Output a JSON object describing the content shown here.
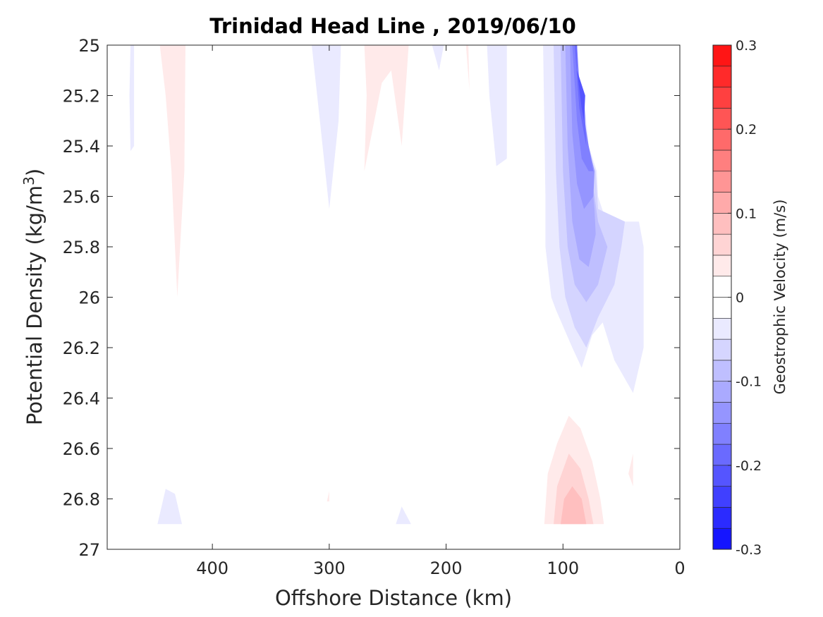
{
  "chart_data": {
    "type": "contour",
    "title": "Trinidad Head Line , 2019/06/10",
    "xlabel": "Offshore Distance (km)",
    "ylabel": "Potential Density (kg/m",
    "ylabel_superscript": "3",
    "ylabel_close": ")",
    "x_reversed": true,
    "y_reversed": true,
    "xlim": [
      0,
      490
    ],
    "ylim": [
      25,
      27
    ],
    "xticks": [
      400,
      300,
      200,
      100,
      0
    ],
    "xtick_labels": [
      "400",
      "300",
      "200",
      "100",
      "0"
    ],
    "yticks": [
      25,
      25.2,
      25.4,
      25.6,
      25.8,
      26,
      26.2,
      26.4,
      26.6,
      26.8,
      27
    ],
    "ytick_labels": [
      "25",
      "25.2",
      "25.4",
      "25.6",
      "25.8",
      "26",
      "26.2",
      "26.4",
      "26.6",
      "26.8",
      "27"
    ],
    "colorbar": {
      "label": "Geostrophic Velocity (m/s)",
      "min": -0.3,
      "max": 0.3,
      "step": 0.025,
      "ticks": [
        -0.3,
        -0.2,
        -0.1,
        0,
        0.1,
        0.2,
        0.3
      ],
      "tick_labels": [
        "-0.3",
        "-0.2",
        "-0.1",
        "0",
        "0.1",
        "0.2",
        "0.3"
      ],
      "negative_color": "#0000ff",
      "positive_color": "#ff0000"
    },
    "contour_regions": [
      {
        "level": -0.025,
        "points": [
          [
            470,
            25
          ],
          [
            467,
            25
          ],
          [
            467,
            25.4
          ],
          [
            470,
            25.42
          ],
          [
            471,
            25.2
          ]
        ]
      },
      {
        "level": 0.025,
        "points": [
          [
            445,
            25
          ],
          [
            423,
            25
          ],
          [
            424,
            25.5
          ],
          [
            430,
            26
          ],
          [
            435,
            25.5
          ],
          [
            440,
            25.2
          ]
        ]
      },
      {
        "level": -0.025,
        "points": [
          [
            315,
            25
          ],
          [
            290,
            25
          ],
          [
            292,
            25.3
          ],
          [
            300,
            25.65
          ],
          [
            308,
            25.3
          ]
        ]
      },
      {
        "level": 0.025,
        "points": [
          [
            270,
            25
          ],
          [
            232,
            25
          ],
          [
            235,
            25.2
          ],
          [
            238,
            25.4
          ],
          [
            247,
            25.1
          ],
          [
            255,
            25.15
          ],
          [
            270,
            25.5
          ],
          [
            268,
            25.2
          ]
        ]
      },
      {
        "level": -0.025,
        "points": [
          [
            212,
            25
          ],
          [
            202,
            25
          ],
          [
            206,
            25.1
          ]
        ]
      },
      {
        "level": 0.025,
        "points": [
          [
            183,
            25
          ],
          [
            181,
            25
          ],
          [
            180,
            25.18
          ]
        ]
      },
      {
        "level": -0.025,
        "points": [
          [
            165,
            25
          ],
          [
            148,
            25
          ],
          [
            148,
            25.45
          ],
          [
            157,
            25.48
          ],
          [
            163,
            25.2
          ]
        ]
      },
      {
        "level": -0.025,
        "points": [
          [
            117,
            25
          ],
          [
            115,
            25.6
          ],
          [
            115,
            25.8
          ],
          [
            110,
            26.0
          ],
          [
            106,
            26.05
          ],
          [
            92,
            26.2
          ],
          [
            84,
            26.28
          ],
          [
            75,
            26.15
          ],
          [
            66,
            26.1
          ],
          [
            56,
            26.25
          ],
          [
            40,
            26.38
          ],
          [
            31,
            26.2
          ],
          [
            31,
            25.8
          ],
          [
            35,
            25.7
          ],
          [
            63,
            25.7
          ],
          [
            70,
            25.6
          ],
          [
            71,
            25.5
          ],
          [
            78,
            25.4
          ],
          [
            82,
            25.2
          ],
          [
            88,
            25.1
          ],
          [
            88,
            25
          ]
        ]
      },
      {
        "level": -0.05,
        "points": [
          [
            108,
            25
          ],
          [
            106,
            25.5
          ],
          [
            103,
            25.8
          ],
          [
            98,
            26
          ],
          [
            90,
            26.12
          ],
          [
            80,
            26.2
          ],
          [
            70,
            26.08
          ],
          [
            56,
            25.95
          ],
          [
            50,
            25.8
          ],
          [
            47,
            25.7
          ],
          [
            70,
            25.65
          ],
          [
            72,
            25.5
          ],
          [
            80,
            25.4
          ],
          [
            85,
            25.2
          ],
          [
            88,
            25.1
          ],
          [
            88,
            25
          ]
        ]
      },
      {
        "level": -0.075,
        "points": [
          [
            102,
            25
          ],
          [
            100,
            25.5
          ],
          [
            96,
            25.8
          ],
          [
            90,
            25.95
          ],
          [
            80,
            26.02
          ],
          [
            70,
            25.95
          ],
          [
            62,
            25.8
          ],
          [
            70,
            25.7
          ],
          [
            73,
            25.6
          ],
          [
            80,
            25.4
          ],
          [
            85,
            25.2
          ],
          [
            88,
            25.1
          ],
          [
            88,
            25
          ]
        ]
      },
      {
        "level": -0.1,
        "points": [
          [
            98,
            25
          ],
          [
            96,
            25.4
          ],
          [
            92,
            25.7
          ],
          [
            86,
            25.85
          ],
          [
            78,
            25.88
          ],
          [
            72,
            25.75
          ],
          [
            73,
            25.65
          ],
          [
            76,
            25.5
          ],
          [
            82,
            25.35
          ],
          [
            86,
            25.2
          ],
          [
            88,
            25.1
          ],
          [
            88,
            25
          ]
        ]
      },
      {
        "level": -0.125,
        "points": [
          [
            94,
            25
          ],
          [
            92,
            25.35
          ],
          [
            88,
            25.55
          ],
          [
            82,
            25.65
          ],
          [
            74,
            25.6
          ],
          [
            73,
            25.5
          ],
          [
            78,
            25.4
          ],
          [
            83,
            25.25
          ],
          [
            87,
            25.15
          ],
          [
            88,
            25
          ]
        ]
      },
      {
        "level": -0.15,
        "points": [
          [
            92,
            25
          ],
          [
            88,
            25.3
          ],
          [
            84,
            25.45
          ],
          [
            78,
            25.5
          ],
          [
            74,
            25.5
          ],
          [
            78,
            25.4
          ],
          [
            82,
            25.3
          ],
          [
            86,
            25.15
          ],
          [
            88,
            25
          ]
        ]
      },
      {
        "level": -0.175,
        "points": [
          [
            90,
            25
          ],
          [
            86,
            25.25
          ],
          [
            82,
            25.35
          ],
          [
            80,
            25.4
          ],
          [
            82,
            25.2
          ],
          [
            88,
            25.1
          ],
          [
            88,
            25
          ]
        ]
      },
      {
        "level": -0.2,
        "points": [
          [
            88,
            25.1
          ],
          [
            84,
            25.25
          ],
          [
            82,
            25.3
          ],
          [
            81,
            25.2
          ]
        ]
      },
      {
        "level": 0.025,
        "points": [
          [
            116,
            26.9
          ],
          [
            113,
            26.7
          ],
          [
            105,
            26.58
          ],
          [
            95,
            26.47
          ],
          [
            85,
            26.52
          ],
          [
            75,
            26.65
          ],
          [
            68,
            26.8
          ],
          [
            65,
            26.9
          ]
        ]
      },
      {
        "level": 0.05,
        "points": [
          [
            108,
            26.9
          ],
          [
            105,
            26.75
          ],
          [
            95,
            26.62
          ],
          [
            85,
            26.68
          ],
          [
            78,
            26.8
          ],
          [
            74,
            26.9
          ]
        ]
      },
      {
        "level": 0.075,
        "points": [
          [
            102,
            26.9
          ],
          [
            99,
            26.8
          ],
          [
            92,
            26.75
          ],
          [
            84,
            26.8
          ],
          [
            80,
            26.9
          ]
        ]
      },
      {
        "level": 0.025,
        "points": [
          [
            44,
            26.7
          ],
          [
            40,
            26.62
          ],
          [
            40,
            26.75
          ]
        ]
      },
      {
        "level": -0.025,
        "points": [
          [
            447,
            26.9
          ],
          [
            440,
            26.76
          ],
          [
            432,
            26.78
          ],
          [
            426,
            26.9
          ]
        ]
      },
      {
        "level": -0.025,
        "points": [
          [
            243,
            26.9
          ],
          [
            238,
            26.83
          ],
          [
            230,
            26.9
          ]
        ]
      },
      {
        "level": 0.025,
        "points": [
          [
            302,
            26.81
          ],
          [
            300,
            26.77
          ],
          [
            300,
            26.81
          ]
        ]
      }
    ]
  }
}
